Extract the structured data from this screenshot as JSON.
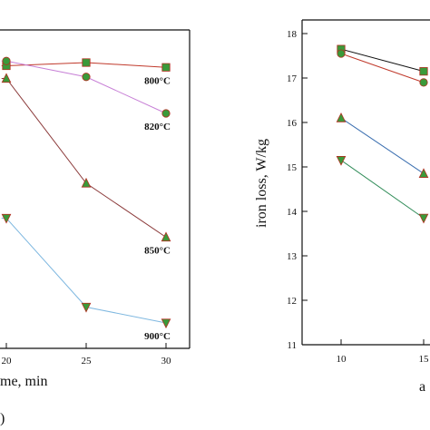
{
  "colors": {
    "marker_fill": "#3a9a3a",
    "marker_edge": "#b03020",
    "axis": "#111111"
  },
  "chart_data": [
    {
      "type": "line",
      "xlabel_visible": "me, min",
      "x_ticks": [
        "20",
        "25",
        "30"
      ],
      "y_ticks": [],
      "series": [
        {
          "name": "800°C",
          "color": "#c0392b",
          "marker": "square",
          "points": [
            [
              19.7,
              89.0
            ],
            [
              20,
              89.0
            ],
            [
              25,
              90.0
            ],
            [
              30,
              88.5
            ]
          ]
        },
        {
          "name": "820°C",
          "color": "#c77fd6",
          "marker": "circle",
          "points": [
            [
              19.7,
              90.5
            ],
            [
              20,
              90.5
            ],
            [
              25,
              85.5
            ],
            [
              30,
              74.0
            ]
          ]
        },
        {
          "name": "850°C",
          "color": "#8b3a3a",
          "marker": "triangle-up",
          "points": [
            [
              19.7,
              85.0
            ],
            [
              20,
              85.0
            ],
            [
              25,
              52.0
            ],
            [
              30,
              35.0
            ]
          ]
        },
        {
          "name": "900°C",
          "color": "#7fb8e0",
          "marker": "triangle-down",
          "points": [
            [
              19.7,
              41.0
            ],
            [
              20,
              41.0
            ],
            [
              25,
              13.0
            ],
            [
              30,
              8.0
            ]
          ]
        }
      ],
      "panel_tag": ")"
    },
    {
      "type": "line",
      "ylabel": "iron loss, W/kg",
      "xlabel_visible": "a",
      "x_ticks": [
        "10",
        "15"
      ],
      "y_ticks": [
        "11",
        "12",
        "13",
        "14",
        "15",
        "16",
        "17",
        "18"
      ],
      "ylim": [
        11,
        18.35
      ],
      "series": [
        {
          "color": "#111111",
          "marker": "square",
          "points": [
            [
              10,
              17.65
            ],
            [
              15,
              17.15
            ]
          ]
        },
        {
          "color": "#c0392b",
          "marker": "circle",
          "points": [
            [
              10,
              17.55
            ],
            [
              15,
              16.9
            ]
          ]
        },
        {
          "color": "#3b6fb0",
          "marker": "triangle-up",
          "points": [
            [
              10,
              16.1
            ],
            [
              15,
              14.85
            ]
          ]
        },
        {
          "color": "#2e8b57",
          "marker": "triangle-down",
          "points": [
            [
              10,
              15.15
            ],
            [
              15,
              13.85
            ]
          ]
        }
      ]
    }
  ]
}
